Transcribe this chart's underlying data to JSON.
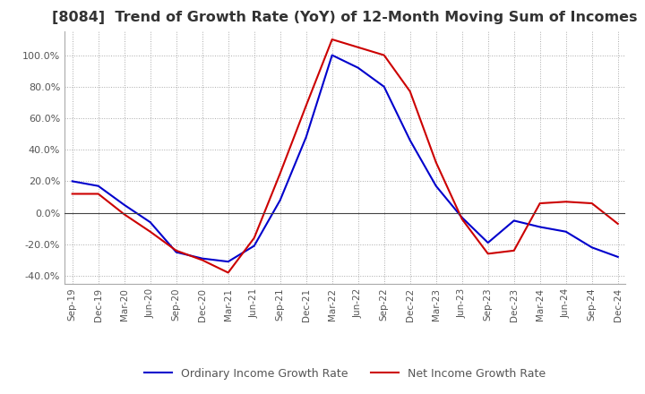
{
  "title": "[8084]  Trend of Growth Rate (YoY) of 12-Month Moving Sum of Incomes",
  "title_fontsize": 11.5,
  "ylim": [
    -0.45,
    1.15
  ],
  "yticks": [
    -0.4,
    -0.2,
    0.0,
    0.2,
    0.4,
    0.6,
    0.8,
    1.0
  ],
  "background_color": "#ffffff",
  "grid_color": "#aaaaaa",
  "ordinary_color": "#0000cc",
  "net_color": "#cc0000",
  "legend_labels": [
    "Ordinary Income Growth Rate",
    "Net Income Growth Rate"
  ],
  "x_labels": [
    "Sep-19",
    "Dec-19",
    "Mar-20",
    "Jun-20",
    "Sep-20",
    "Dec-20",
    "Mar-21",
    "Jun-21",
    "Sep-21",
    "Dec-21",
    "Mar-22",
    "Jun-22",
    "Sep-22",
    "Dec-22",
    "Mar-23",
    "Jun-23",
    "Sep-23",
    "Dec-23",
    "Mar-24",
    "Jun-24",
    "Sep-24",
    "Dec-24"
  ],
  "ordinary_values": [
    0.2,
    0.17,
    0.05,
    -0.06,
    -0.25,
    -0.29,
    -0.31,
    -0.21,
    0.08,
    0.48,
    1.0,
    0.92,
    0.8,
    0.46,
    0.17,
    -0.03,
    -0.19,
    -0.05,
    -0.09,
    -0.12,
    -0.22,
    -0.28
  ],
  "net_values": [
    0.12,
    0.12,
    -0.01,
    -0.12,
    -0.24,
    -0.3,
    -0.38,
    -0.16,
    0.25,
    0.68,
    1.1,
    1.05,
    1.0,
    0.77,
    0.32,
    -0.04,
    -0.26,
    -0.24,
    0.06,
    0.07,
    0.06,
    -0.07
  ]
}
